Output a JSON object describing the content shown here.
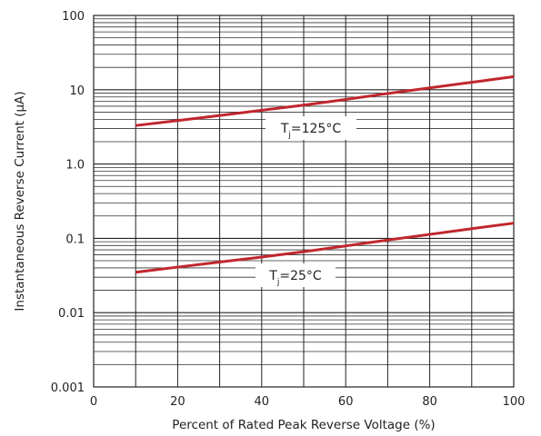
{
  "chart_data": {
    "type": "line",
    "xlabel": "Percent of Rated Peak Reverse Voltage (%)",
    "ylabel": "Instantaneous Reverse Current (μA)",
    "xlim": [
      0,
      100
    ],
    "ylim": [
      0.001,
      100
    ],
    "yscale": "log",
    "grid": true,
    "x_ticks": [
      0,
      20,
      40,
      60,
      80,
      100
    ],
    "x_tick_labels": [
      "0",
      "20",
      "40",
      "60",
      "80",
      "100"
    ],
    "y_ticks": [
      0.001,
      0.01,
      0.1,
      1,
      10,
      100
    ],
    "y_tick_labels": [
      "0.001",
      "0.01",
      "0.1",
      "1.0",
      "10",
      "100"
    ],
    "series": [
      {
        "name": "Tj=125°C",
        "label_main": "T",
        "label_sub": "j",
        "label_rest": "=125°C",
        "color": "#c0272d",
        "x": [
          10,
          20,
          30,
          40,
          50,
          60,
          70,
          80,
          90,
          100
        ],
        "y": [
          3.3,
          3.85,
          4.5,
          5.3,
          6.2,
          7.4,
          8.9,
          10.6,
          12.6,
          15
        ]
      },
      {
        "name": "Tj=25°C",
        "label_main": "T",
        "label_sub": "j",
        "label_rest": "=25°C",
        "color": "#c0272d",
        "x": [
          10,
          20,
          30,
          40,
          50,
          60,
          70,
          80,
          90,
          100
        ],
        "y": [
          0.035,
          0.041,
          0.048,
          0.056,
          0.066,
          0.079,
          0.095,
          0.113,
          0.135,
          0.16
        ]
      }
    ]
  }
}
